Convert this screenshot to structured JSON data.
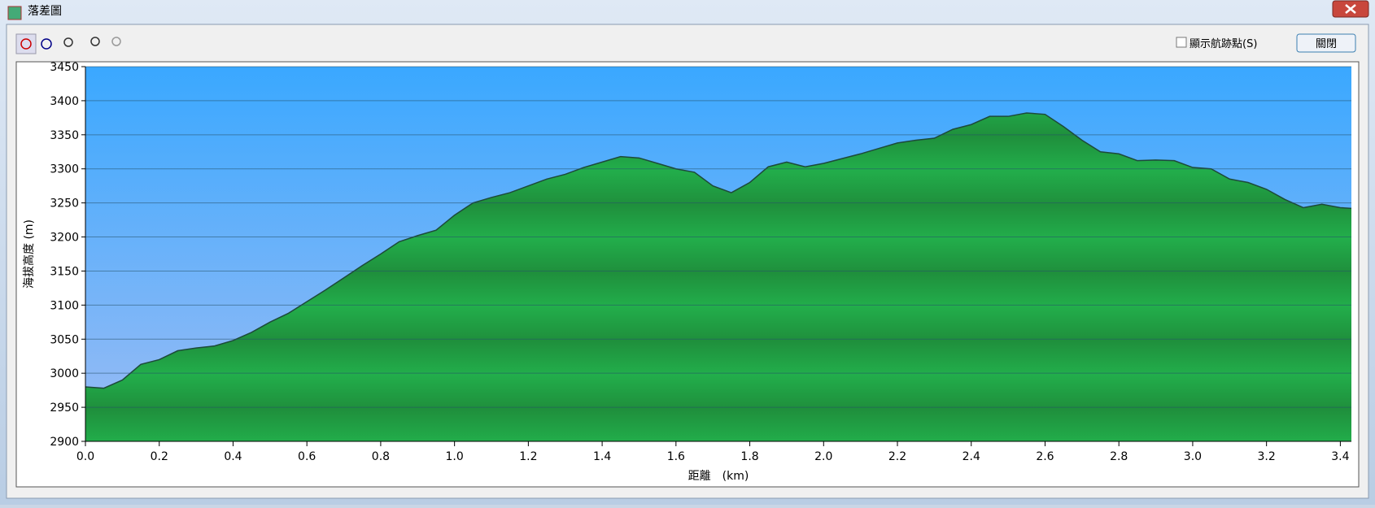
{
  "window": {
    "title": "落差圖",
    "checkbox_label": "顯示航跡點(S)",
    "close_button": "關閉"
  },
  "chart_data": {
    "type": "area",
    "x_label": "距離　(km)",
    "y_label": "海拔高度 (m)",
    "x": [
      0,
      0.05,
      0.1,
      0.15,
      0.2,
      0.25,
      0.3,
      0.35,
      0.4,
      0.45,
      0.5,
      0.55,
      0.6,
      0.65,
      0.7,
      0.75,
      0.8,
      0.85,
      0.9,
      0.95,
      1.0,
      1.05,
      1.1,
      1.15,
      1.2,
      1.25,
      1.3,
      1.35,
      1.4,
      1.45,
      1.5,
      1.55,
      1.6,
      1.65,
      1.7,
      1.75,
      1.8,
      1.85,
      1.9,
      1.95,
      2.0,
      2.05,
      2.1,
      2.15,
      2.2,
      2.25,
      2.3,
      2.35,
      2.4,
      2.45,
      2.5,
      2.55,
      2.6,
      2.65,
      2.7,
      2.75,
      2.8,
      2.85,
      2.9,
      2.95,
      3.0,
      3.05,
      3.1,
      3.15,
      3.2,
      3.25,
      3.3,
      3.35,
      3.4,
      3.43
    ],
    "values": [
      2980,
      2978,
      2990,
      3013,
      3020,
      3033,
      3037,
      3040,
      3048,
      3060,
      3075,
      3088,
      3105,
      3122,
      3140,
      3158,
      3175,
      3193,
      3202,
      3210,
      3232,
      3250,
      3258,
      3265,
      3275,
      3285,
      3292,
      3302,
      3310,
      3318,
      3316,
      3308,
      3300,
      3295,
      3275,
      3265,
      3280,
      3303,
      3310,
      3303,
      3308,
      3315,
      3322,
      3330,
      3338,
      3342,
      3345,
      3358,
      3365,
      3377,
      3377,
      3382,
      3380,
      3362,
      3342,
      3325,
      3322,
      3312,
      3313,
      3312,
      3302,
      3300,
      3285,
      3280,
      3270,
      3255,
      3243,
      3248,
      3243,
      3242
    ],
    "color": "#22a84a",
    "xlim": [
      0,
      3.43
    ],
    "xticks": [
      {
        "value": 0,
        "label": "0.0"
      },
      0.2,
      0.4,
      0.6,
      0.8,
      {
        "value": 1,
        "label": "1.0"
      },
      1.2,
      1.4,
      1.6,
      1.8,
      {
        "value": 2,
        "label": "2.0"
      },
      2.2,
      2.4,
      2.6,
      2.8,
      {
        "value": 3,
        "label": "3.0"
      },
      3.2,
      3.4
    ],
    "ylim": [
      2900,
      3450
    ],
    "yticks": [
      2900,
      2950,
      3000,
      3050,
      3100,
      3150,
      3200,
      3250,
      3300,
      3350,
      3400,
      3450
    ],
    "grid": true
  }
}
